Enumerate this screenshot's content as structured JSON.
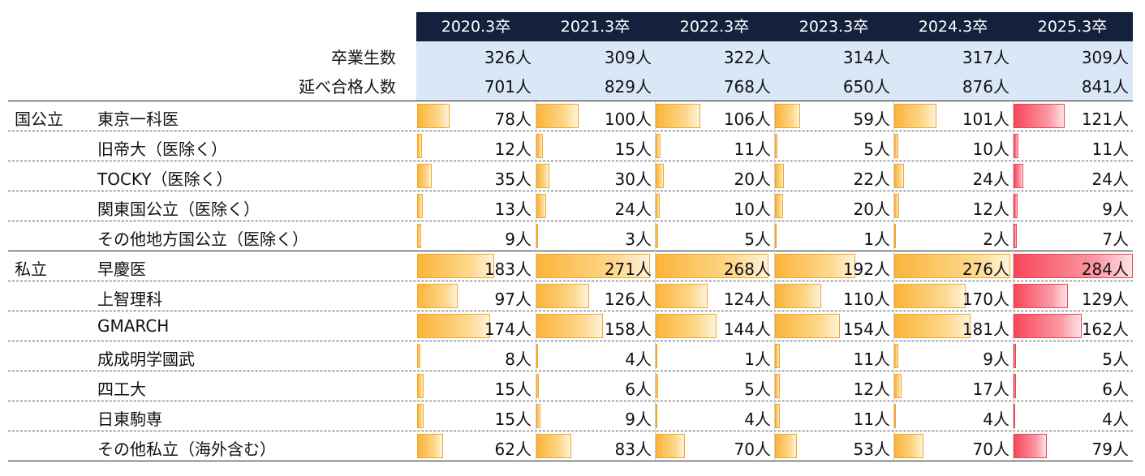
{
  "chart_data": {
    "type": "table",
    "columns": [
      "2020.3卒",
      "2021.3卒",
      "2022.3卒",
      "2023.3卒",
      "2024.3卒",
      "2025.3卒"
    ],
    "summary_rows": [
      {
        "label": "卒業生数",
        "values": [
          "326人",
          "309人",
          "322人",
          "314人",
          "317人",
          "309人"
        ]
      },
      {
        "label": "延べ合格人数",
        "values": [
          "701人",
          "829人",
          "768人",
          "650人",
          "876人",
          "841人"
        ]
      }
    ],
    "groups": [
      {
        "name": "国公立",
        "rows": [
          {
            "label": "東京一科医",
            "values": [
              78,
              100,
              106,
              59,
              101,
              121
            ]
          },
          {
            "label": "旧帝大（医除く）",
            "values": [
              12,
              15,
              11,
              5,
              10,
              11
            ]
          },
          {
            "label": "TOCKY（医除く）",
            "values": [
              35,
              30,
              20,
              22,
              24,
              24
            ]
          },
          {
            "label": "関東国公立（医除く）",
            "values": [
              13,
              24,
              10,
              20,
              12,
              9
            ]
          },
          {
            "label": "その他地方国公立（医除く）",
            "values": [
              9,
              3,
              5,
              1,
              2,
              7
            ]
          }
        ]
      },
      {
        "name": "私立",
        "rows": [
          {
            "label": "早慶医",
            "values": [
              183,
              271,
              268,
              192,
              276,
              284
            ]
          },
          {
            "label": "上智理科",
            "values": [
              97,
              126,
              124,
              110,
              170,
              129
            ]
          },
          {
            "label": "GMARCH",
            "values": [
              174,
              158,
              144,
              154,
              181,
              162
            ]
          },
          {
            "label": "成成明学國武",
            "values": [
              8,
              4,
              1,
              11,
              9,
              5
            ]
          },
          {
            "label": "四工大",
            "values": [
              15,
              6,
              5,
              12,
              17,
              6
            ]
          },
          {
            "label": "日東駒専",
            "values": [
              15,
              9,
              4,
              11,
              4,
              4
            ]
          },
          {
            "label": "その他私立（海外含む）",
            "values": [
              62,
              83,
              70,
              53,
              70,
              79
            ]
          }
        ]
      }
    ],
    "unit": "人",
    "bar_colors": {
      "default": "#fbb43a",
      "highlight": "#f8465a"
    },
    "highlight_column": 5,
    "bar_max_value": 284
  }
}
